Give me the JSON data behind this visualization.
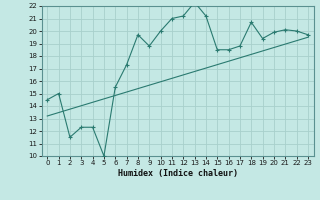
{
  "xlabel": "Humidex (Indice chaleur)",
  "xlim": [
    -0.5,
    23.5
  ],
  "ylim": [
    10,
    22
  ],
  "xticks": [
    0,
    1,
    2,
    3,
    4,
    5,
    6,
    7,
    8,
    9,
    10,
    11,
    12,
    13,
    14,
    15,
    16,
    17,
    18,
    19,
    20,
    21,
    22,
    23
  ],
  "yticks": [
    10,
    11,
    12,
    13,
    14,
    15,
    16,
    17,
    18,
    19,
    20,
    21,
    22
  ],
  "bg_color": "#c4e8e4",
  "grid_color": "#a8d0cc",
  "line_color": "#2a7a70",
  "scatter_x": [
    0,
    1,
    2,
    3,
    4,
    5,
    6,
    7,
    8,
    9,
    10,
    11,
    12,
    13,
    14,
    15,
    16,
    17,
    18,
    19,
    20,
    21,
    22,
    23
  ],
  "scatter_y": [
    14.5,
    15.0,
    11.5,
    12.3,
    12.3,
    10.0,
    15.5,
    17.3,
    19.7,
    18.8,
    20.0,
    21.0,
    21.2,
    22.3,
    21.2,
    18.5,
    18.5,
    18.8,
    20.7,
    19.4,
    19.9,
    20.1,
    20.0,
    19.7
  ],
  "trend_x": [
    0,
    23
  ],
  "trend_y": [
    13.2,
    19.5
  ]
}
